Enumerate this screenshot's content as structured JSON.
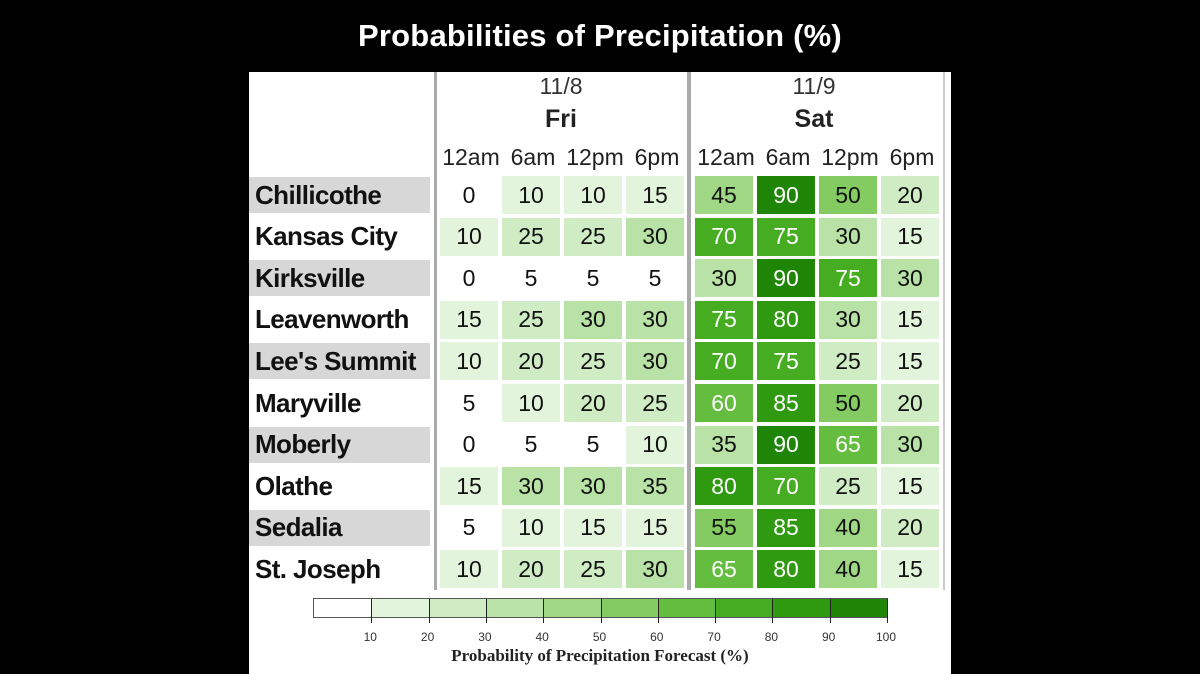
{
  "title": "Probabilities of Precipitation (%)",
  "chart_data": {
    "type": "heatmap",
    "title": "Probabilities of Precipitation (%)",
    "days": [
      {
        "date": "11/8",
        "day": "Fri",
        "times": [
          "12am",
          "6am",
          "12pm",
          "6pm"
        ]
      },
      {
        "date": "11/9",
        "day": "Sat",
        "times": [
          "12am",
          "6am",
          "12pm",
          "6pm"
        ]
      }
    ],
    "rows": [
      {
        "name": "Chillicothe",
        "values": [
          0,
          10,
          10,
          15,
          45,
          90,
          50,
          20
        ]
      },
      {
        "name": "Kansas City",
        "values": [
          10,
          25,
          25,
          30,
          70,
          75,
          30,
          15
        ]
      },
      {
        "name": "Kirksville",
        "values": [
          0,
          5,
          5,
          5,
          30,
          90,
          75,
          30
        ]
      },
      {
        "name": "Leavenworth",
        "values": [
          15,
          25,
          30,
          30,
          75,
          80,
          30,
          15
        ]
      },
      {
        "name": "Lee's Summit",
        "values": [
          10,
          20,
          25,
          30,
          70,
          75,
          25,
          15
        ]
      },
      {
        "name": "Maryville",
        "values": [
          5,
          10,
          20,
          25,
          60,
          85,
          50,
          20
        ]
      },
      {
        "name": "Moberly",
        "values": [
          0,
          5,
          5,
          10,
          35,
          90,
          65,
          30
        ]
      },
      {
        "name": "Olathe",
        "values": [
          15,
          30,
          30,
          35,
          80,
          70,
          25,
          15
        ]
      },
      {
        "name": "Sedalia",
        "values": [
          5,
          10,
          15,
          15,
          55,
          85,
          40,
          20
        ]
      },
      {
        "name": "St. Joseph",
        "values": [
          10,
          20,
          25,
          30,
          65,
          80,
          40,
          15
        ]
      }
    ],
    "legend": {
      "title": "Probability of Precipitation Forecast (%)",
      "ticks": [
        10,
        20,
        30,
        40,
        50,
        60,
        70,
        80,
        90,
        100
      ],
      "colors": [
        "#ffffff",
        "#e3f4dc",
        "#d0ecc4",
        "#b8e2a6",
        "#9fd784",
        "#84cc62",
        "#64bd3f",
        "#46ad22",
        "#2f9a10",
        "#1f8506"
      ]
    }
  }
}
